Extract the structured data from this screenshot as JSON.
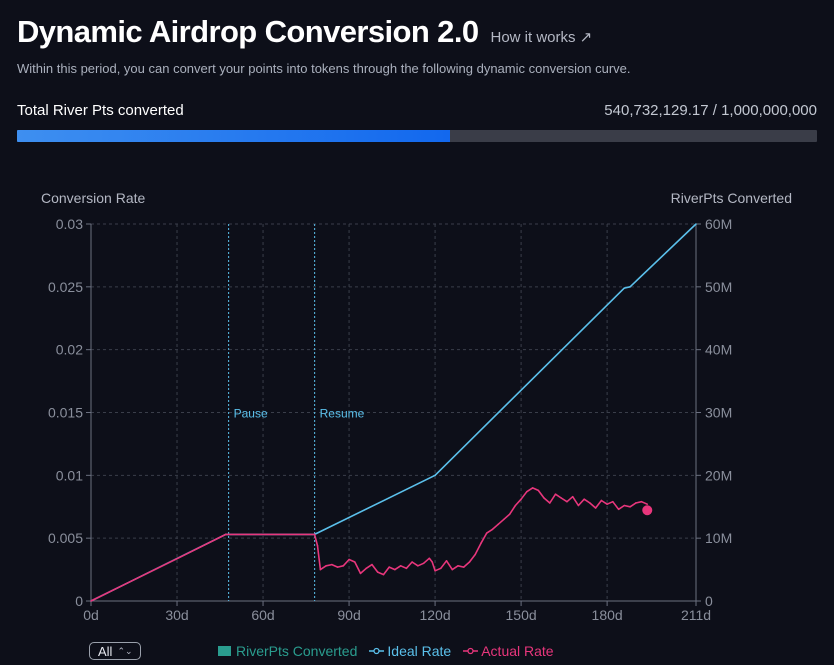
{
  "header": {
    "title": "Dynamic Airdrop Conversion 2.0",
    "how_it_works": "How it works ↗",
    "subtitle": "Within this period, you can convert your points into tokens through the following dynamic conversion curve."
  },
  "progress": {
    "label": "Total River Pts converted",
    "value_text": "540,732,129.17 / 1,000,000,000",
    "fraction": 0.5407
  },
  "chart_data": {
    "type": "line",
    "title": "",
    "ylabel_left": "Conversion Rate",
    "ylabel_right": "RiverPts Converted",
    "xlim": [
      0,
      211
    ],
    "ylim_left": [
      0,
      0.03
    ],
    "ylim_right": [
      0,
      60000000
    ],
    "x_ticks": [
      "0d",
      "30d",
      "60d",
      "90d",
      "120d",
      "150d",
      "180d",
      "211d"
    ],
    "x_tick_values": [
      0,
      30,
      60,
      90,
      120,
      150,
      180,
      211
    ],
    "y_left_ticks": [
      "0",
      "0.005",
      "0.01",
      "0.015",
      "0.02",
      "0.025",
      "0.03"
    ],
    "y_left_tick_values": [
      0,
      0.005,
      0.01,
      0.015,
      0.02,
      0.025,
      0.03
    ],
    "y_right_ticks": [
      "0",
      "10M",
      "20M",
      "30M",
      "40M",
      "50M",
      "60M"
    ],
    "grid": true,
    "legend_position": "bottom",
    "annotations": [
      {
        "label": "Pause",
        "x": 48
      },
      {
        "label": "Resume",
        "x": 78
      }
    ],
    "series": [
      {
        "name": "RiverPts Converted",
        "type": "area",
        "color": "#2a9d8f",
        "values": []
      },
      {
        "name": "Ideal Rate",
        "color": "#5bc0eb",
        "points": [
          [
            0,
            0
          ],
          [
            47,
            0.0053
          ],
          [
            78,
            0.0053
          ],
          [
            120,
            0.01
          ],
          [
            186,
            0.0249
          ],
          [
            188,
            0.025
          ],
          [
            211,
            0.03
          ]
        ]
      },
      {
        "name": "Actual Rate",
        "color": "#e8367c",
        "points": [
          [
            0,
            0
          ],
          [
            32,
            0.0036
          ],
          [
            47,
            0.0053
          ],
          [
            78,
            0.0053
          ],
          [
            79,
            0.0044
          ],
          [
            80,
            0.0025
          ],
          [
            82,
            0.0028
          ],
          [
            84,
            0.0029
          ],
          [
            86,
            0.0027
          ],
          [
            88,
            0.0028
          ],
          [
            90,
            0.0033
          ],
          [
            92,
            0.0031
          ],
          [
            94,
            0.0022
          ],
          [
            96,
            0.0026
          ],
          [
            98,
            0.0029
          ],
          [
            100,
            0.0023
          ],
          [
            102,
            0.0021
          ],
          [
            104,
            0.0027
          ],
          [
            106,
            0.0025
          ],
          [
            108,
            0.0028
          ],
          [
            110,
            0.0026
          ],
          [
            112,
            0.0031
          ],
          [
            114,
            0.0028
          ],
          [
            116,
            0.003
          ],
          [
            118,
            0.0034
          ],
          [
            119,
            0.0031
          ],
          [
            120,
            0.0024
          ],
          [
            122,
            0.0026
          ],
          [
            124,
            0.0032
          ],
          [
            126,
            0.0025
          ],
          [
            128,
            0.0028
          ],
          [
            130,
            0.0027
          ],
          [
            132,
            0.0031
          ],
          [
            134,
            0.0037
          ],
          [
            136,
            0.0046
          ],
          [
            138,
            0.0054
          ],
          [
            140,
            0.0057
          ],
          [
            142,
            0.0061
          ],
          [
            144,
            0.0065
          ],
          [
            146,
            0.0069
          ],
          [
            148,
            0.0076
          ],
          [
            150,
            0.0081
          ],
          [
            152,
            0.0087
          ],
          [
            154,
            0.009
          ],
          [
            156,
            0.0088
          ],
          [
            158,
            0.0082
          ],
          [
            160,
            0.0078
          ],
          [
            162,
            0.0085
          ],
          [
            164,
            0.0082
          ],
          [
            166,
            0.0079
          ],
          [
            168,
            0.0083
          ],
          [
            170,
            0.0076
          ],
          [
            172,
            0.0081
          ],
          [
            174,
            0.0078
          ],
          [
            176,
            0.0074
          ],
          [
            178,
            0.008
          ],
          [
            180,
            0.0077
          ],
          [
            182,
            0.0079
          ],
          [
            184,
            0.0073
          ],
          [
            186,
            0.0076
          ],
          [
            188,
            0.0075
          ],
          [
            190,
            0.0078
          ],
          [
            192,
            0.0079
          ],
          [
            194,
            0.0077
          ]
        ]
      }
    ]
  },
  "footer": {
    "range_label": "All",
    "range_chevron": "⌃⌄"
  }
}
